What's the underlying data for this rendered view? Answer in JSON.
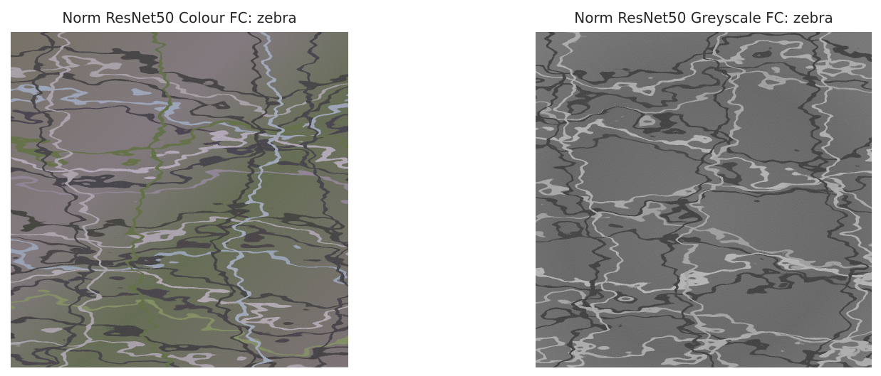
{
  "figure": {
    "panels": [
      {
        "title": "Norm ResNet50 Colour FC: zebra",
        "image": {
          "subject": "feature visualization of zebra class, colour",
          "palette": [
            "#6e6a5e",
            "#8a7f86",
            "#5f6a4a",
            "#9aa0b0",
            "#7a6f72",
            "#4f5b3e",
            "#b3a9b4"
          ]
        }
      },
      {
        "title": "Norm ResNet50 Greyscale FC: zebra",
        "image": {
          "subject": "feature visualization of zebra class, greyscale",
          "palette": [
            "#5a5a5a",
            "#7a7a7a",
            "#9a9a9a",
            "#4a4a4a",
            "#b0b0b0",
            "#3c3c3c",
            "#c4c4c4"
          ]
        }
      }
    ]
  }
}
